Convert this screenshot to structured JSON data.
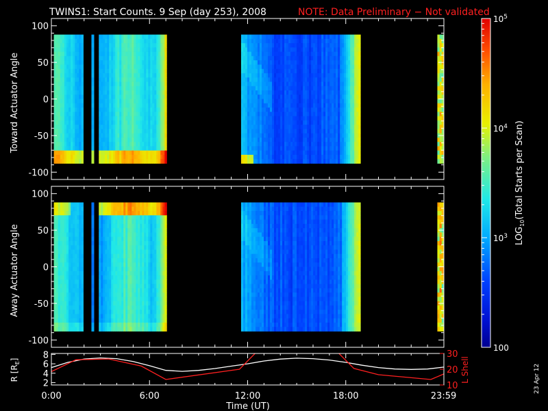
{
  "title": {
    "main": "TWINS1: Start Counts.  9 Sep (day 253), 2008",
    "note": "NOTE: Data Preliminary − Not validated",
    "note_color": "#ff2020"
  },
  "stamp": "23 Apr 12",
  "colorbar": {
    "label_prefix": "LOG",
    "label_sub": "10",
    "label_suffix": "(Total Starts per Scan)",
    "ticks": [
      {
        "value": 100,
        "label": "100"
      },
      {
        "value": 1000,
        "label": "10",
        "exp": "3"
      },
      {
        "value": 10000,
        "label": "10",
        "exp": "4"
      },
      {
        "value": 100000,
        "label": "10",
        "exp": "5"
      }
    ],
    "range": [
      100,
      100000
    ],
    "scale": "log"
  },
  "chart_data": [
    {
      "type": "heatmap",
      "id": "toward",
      "ylabel": "Toward Actuator Angle",
      "ylim": [
        -110,
        110
      ],
      "yticks": [
        -100,
        -50,
        0,
        50,
        100
      ],
      "xlim_hours": [
        0,
        24
      ],
      "data_ylim": [
        -88,
        88
      ],
      "data_segments_hours": [
        [
          0.15,
          1.95
        ],
        [
          2.45,
          2.6
        ],
        [
          2.9,
          7.05
        ],
        [
          11.6,
          18.9
        ],
        [
          23.6,
          24.0
        ]
      ],
      "gap_lines_hours": [
        2.75
      ],
      "value_range_log10": [
        2.0,
        5.0
      ]
    },
    {
      "type": "heatmap",
      "id": "away",
      "ylabel": "Away Actuator Angle",
      "ylim": [
        -110,
        110
      ],
      "yticks": [
        -100,
        -50,
        0,
        50,
        100
      ],
      "xlim_hours": [
        0,
        24
      ],
      "data_ylim": [
        -88,
        88
      ],
      "data_segments_hours": [
        [
          0.15,
          1.95
        ],
        [
          2.45,
          2.6
        ],
        [
          2.9,
          7.05
        ],
        [
          11.6,
          18.9
        ],
        [
          23.6,
          24.0
        ]
      ],
      "gap_lines_hours": [
        2.75
      ],
      "value_range_log10": [
        2.0,
        5.0
      ]
    },
    {
      "type": "line",
      "id": "orbit",
      "xlabel": "Time (UT)",
      "xticks": [
        {
          "value": 0,
          "label": "0:00"
        },
        {
          "value": 6,
          "label": "6:00"
        },
        {
          "value": 12,
          "label": "12:00"
        },
        {
          "value": 18,
          "label": "18:00"
        },
        {
          "value": 23.98,
          "label": "23:59"
        }
      ],
      "left_axis": {
        "label_prefix": "R [R",
        "label_sub": "E",
        "label_suffix": "]",
        "ylim": [
          1.5,
          8.2
        ],
        "ticks": [
          2,
          4,
          6,
          8
        ]
      },
      "right_axis": {
        "label": "L Shell",
        "ylim": [
          10,
          30
        ],
        "ticks": [
          10,
          20,
          30
        ],
        "color": "#ff2020"
      },
      "series": [
        {
          "axis": "left",
          "color": "#ffffff",
          "x": [
            0,
            1,
            2,
            3,
            4,
            5,
            6,
            7,
            8,
            9,
            10,
            11,
            12,
            13,
            14,
            15,
            16,
            17,
            18,
            19,
            20,
            21,
            22,
            23,
            24
          ],
          "y": [
            5.2,
            6.3,
            7.0,
            7.25,
            7.1,
            6.5,
            5.6,
            4.6,
            4.4,
            4.6,
            5.0,
            5.5,
            6.0,
            6.6,
            7.0,
            7.2,
            7.1,
            6.8,
            6.3,
            5.7,
            5.2,
            4.9,
            4.8,
            4.9,
            5.3
          ]
        },
        {
          "axis": "right",
          "color": "#ff2020",
          "x": [
            0,
            1.5,
            3.5,
            5.5,
            7.0,
            11.5,
            12.5,
            12.8,
            17.1,
            18.5,
            20.0,
            23.2,
            24.0
          ],
          "y": [
            18.5,
            26.0,
            26.5,
            22.0,
            13.5,
            20.0,
            30.5,
            35.0,
            35.0,
            20.5,
            16.5,
            13.5,
            17.0
          ]
        }
      ]
    }
  ]
}
